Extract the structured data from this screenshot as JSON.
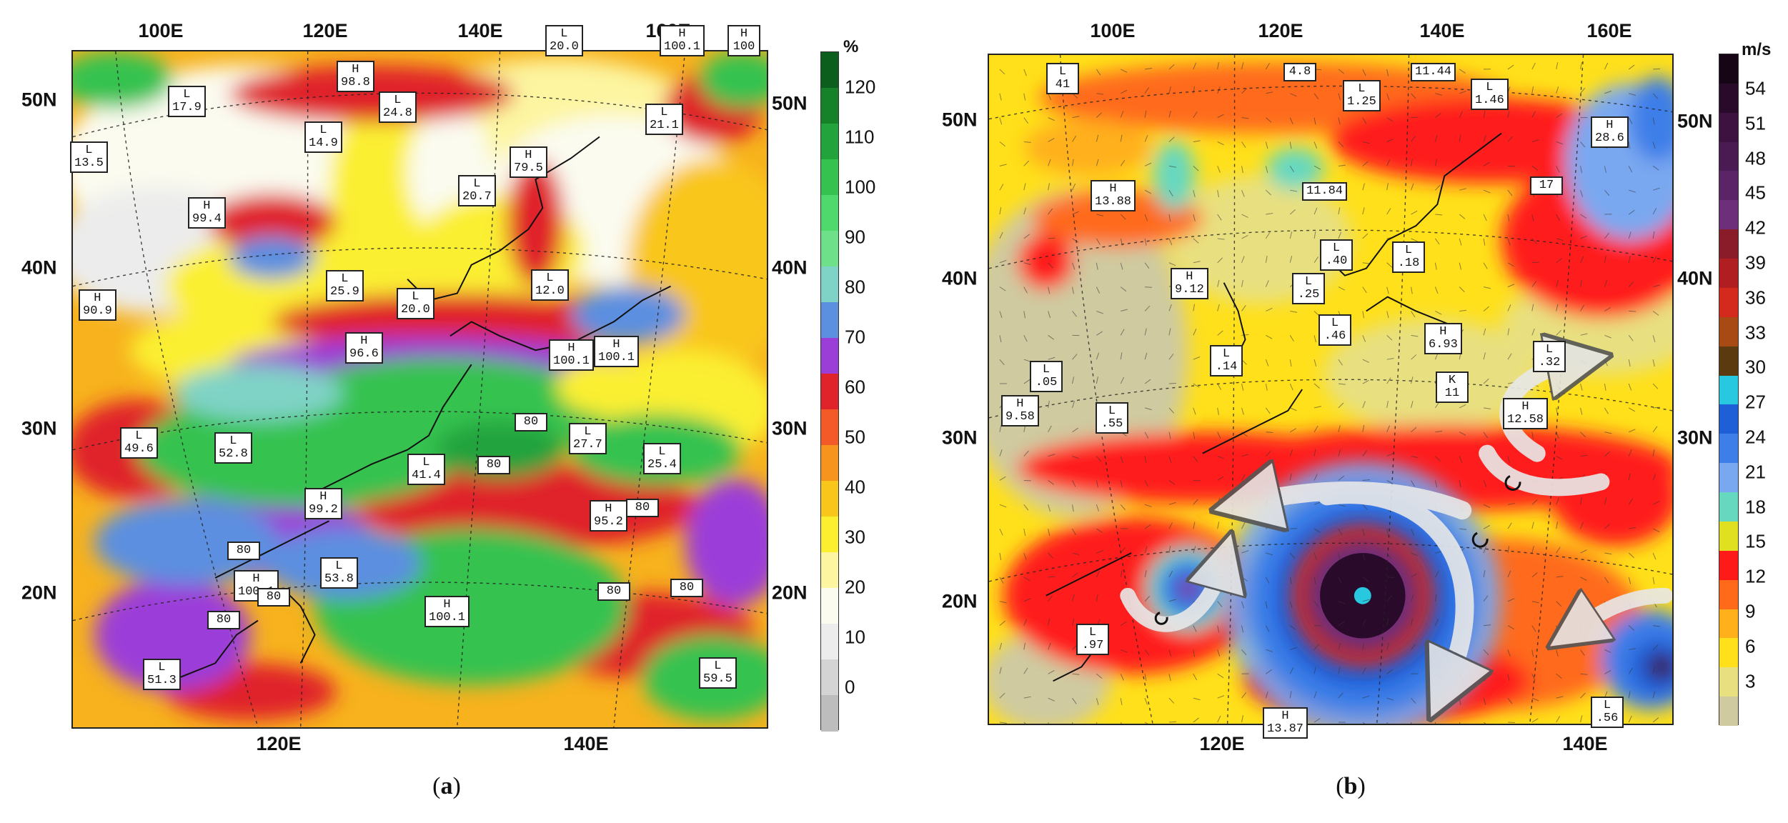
{
  "panels": [
    {
      "id": "a",
      "label_letter": "a",
      "top_lon_labels": [
        "100E",
        "120E",
        "140E",
        "160E"
      ],
      "bottom_lon_labels": [
        "120E",
        "140E"
      ],
      "left_lat_labels": [
        "50N",
        "40N",
        "30N",
        "20N"
      ],
      "right_lat_labels": [
        "50N",
        "40N",
        "30N",
        "20N"
      ],
      "colorbar": {
        "unit": "%",
        "ticks": [
          "120",
          "110",
          "100",
          "90",
          "80",
          "70",
          "60",
          "50",
          "40",
          "30",
          "20",
          "10",
          "0"
        ],
        "colors": [
          "#0b5e1c",
          "#15822a",
          "#23a33c",
          "#35c24f",
          "#4fd86b",
          "#6fe08a",
          "#7fd3c6",
          "#5b8fe0",
          "#9b3ed8",
          "#e0232a",
          "#f35a28",
          "#f7941d",
          "#f9c61c",
          "#fbef30",
          "#fdf5a0",
          "#fbfbf0",
          "#ececec",
          "#d4d4d4",
          "#bdbdbd"
        ]
      },
      "centers": [
        {
          "k": "H",
          "v": "100.1"
        },
        {
          "k": "H",
          "v": "100"
        },
        {
          "k": "L",
          "v": "20.0"
        },
        {
          "k": "L",
          "v": "17.9"
        },
        {
          "k": "H",
          "v": "98.8"
        },
        {
          "k": "L",
          "v": "24.8"
        },
        {
          "k": "L",
          "v": "21.1"
        },
        {
          "k": "L",
          "v": "13.5"
        },
        {
          "k": "L",
          "v": "14.9"
        },
        {
          "k": "H",
          "v": "79.5"
        },
        {
          "k": "L",
          "v": "20.7"
        },
        {
          "k": "H",
          "v": "99.4"
        },
        {
          "k": "L",
          "v": "12.0"
        },
        {
          "k": "L",
          "v": "25.9"
        },
        {
          "k": "L",
          "v": "20.0"
        },
        {
          "k": "H",
          "v": "90.9"
        },
        {
          "k": "H",
          "v": "96.6"
        },
        {
          "k": "H",
          "v": "100.1"
        },
        {
          "k": "H",
          "v": "100.1"
        },
        {
          "k": "L",
          "v": "49.6"
        },
        {
          "k": "L",
          "v": "52.8"
        },
        {
          "k": "L",
          "v": "27.7"
        },
        {
          "k": "L",
          "v": "25.4"
        },
        {
          "k": "L",
          "v": "41.4"
        },
        {
          "k": "H",
          "v": "99.2"
        },
        {
          "k": "H",
          "v": "95.2"
        },
        {
          "k": "H",
          "v": "100.1"
        },
        {
          "k": "L",
          "v": "53.8"
        },
        {
          "k": "H",
          "v": "100.1"
        },
        {
          "k": "L",
          "v": "51.3"
        },
        {
          "k": "L",
          "v": "59.5"
        },
        {
          "k": "",
          "v": "80"
        },
        {
          "k": "",
          "v": "80"
        },
        {
          "k": "",
          "v": "80"
        },
        {
          "k": "",
          "v": "80"
        },
        {
          "k": "",
          "v": "80"
        },
        {
          "k": "",
          "v": "80"
        },
        {
          "k": "",
          "v": "80"
        },
        {
          "k": "",
          "v": "80"
        }
      ]
    },
    {
      "id": "b",
      "label_letter": "b",
      "top_lon_labels": [
        "100E",
        "120E",
        "140E",
        "160E"
      ],
      "bottom_lon_labels": [
        "120E",
        "140E"
      ],
      "left_lat_labels": [
        "50N",
        "40N",
        "30N",
        "20N"
      ],
      "right_lat_labels": [
        "50N",
        "40N",
        "30N"
      ],
      "colorbar": {
        "unit": "m/s",
        "ticks": [
          "54",
          "51",
          "48",
          "45",
          "42",
          "39",
          "36",
          "33",
          "30",
          "27",
          "24",
          "21",
          "18",
          "15",
          "12",
          "9",
          "6",
          "3"
        ],
        "colors": [
          "#150515",
          "#2a0a2a",
          "#3d1240",
          "#4a1a52",
          "#5a2466",
          "#6e2f7a",
          "#8a1c2a",
          "#b01e22",
          "#d42a1e",
          "#a84a14",
          "#5b3a10",
          "#27c8e0",
          "#1e5fd8",
          "#3e7ee8",
          "#7aa8f0",
          "#66d8c0",
          "#e0e020",
          "#ff1a1a",
          "#ff6a1a",
          "#ffb01a",
          "#ffe01a",
          "#e8e080",
          "#cfcaa0"
        ]
      },
      "centers": [
        {
          "k": "L",
          "v": "41"
        },
        {
          "k": "",
          "v": "4.8"
        },
        {
          "k": "L",
          "v": "1.25"
        },
        {
          "k": "",
          "v": "11.44"
        },
        {
          "k": "L",
          "v": "1.46"
        },
        {
          "k": "H",
          "v": "28.6"
        },
        {
          "k": "H",
          "v": "13.88"
        },
        {
          "k": "",
          "v": "11.84"
        },
        {
          "k": "",
          "v": "17"
        },
        {
          "k": "L",
          "v": ".40"
        },
        {
          "k": "L",
          "v": ".18"
        },
        {
          "k": "H",
          "v": "9.12"
        },
        {
          "k": "L",
          "v": ".25"
        },
        {
          "k": "L",
          "v": ".46"
        },
        {
          "k": "H",
          "v": "6.93"
        },
        {
          "k": "L",
          "v": ".14"
        },
        {
          "k": "L",
          "v": ".05"
        },
        {
          "k": "L",
          "v": ".32"
        },
        {
          "k": "H",
          "v": "9.58"
        },
        {
          "k": "L",
          "v": ".55"
        },
        {
          "k": "K",
          "v": "11"
        },
        {
          "k": "H",
          "v": "12.58"
        },
        {
          "k": "L",
          "v": ".97"
        },
        {
          "k": "H",
          "v": "13.87"
        },
        {
          "k": "L",
          "v": ".56"
        }
      ]
    }
  ]
}
